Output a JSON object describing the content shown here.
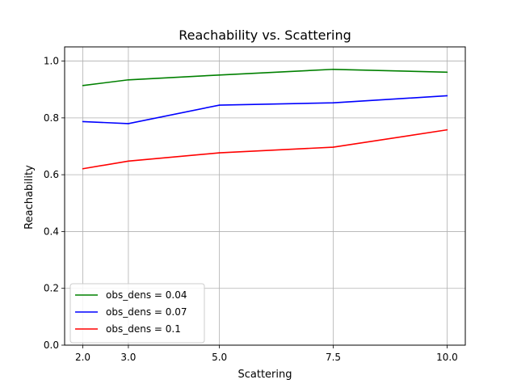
{
  "chart_data": {
    "type": "line",
    "title": "Reachability vs. Scattering",
    "xlabel": "Scattering",
    "ylabel": "Reachability",
    "x": [
      2.0,
      3.0,
      5.0,
      7.5,
      10.0
    ],
    "x_tick_labels": [
      "2.0",
      "3.0",
      "5.0",
      "7.5",
      "10.0"
    ],
    "y_ticks": [
      0.0,
      0.2,
      0.4,
      0.6,
      0.8,
      1.0
    ],
    "y_tick_labels": [
      "0.0",
      "0.2",
      "0.4",
      "0.6",
      "0.8",
      "1.0"
    ],
    "xlim": [
      1.6,
      10.4
    ],
    "ylim": [
      0.0,
      1.05
    ],
    "grid": true,
    "legend_position": "lower-left",
    "series": [
      {
        "name": "obs_dens = 0.04",
        "color": "#008000",
        "values": [
          0.914,
          0.934,
          0.951,
          0.971,
          0.961
        ]
      },
      {
        "name": "obs_dens = 0.07",
        "color": "#0000ff",
        "values": [
          0.787,
          0.78,
          0.845,
          0.853,
          0.878
        ]
      },
      {
        "name": "obs_dens = 0.1",
        "color": "#ff0000",
        "values": [
          0.621,
          0.648,
          0.677,
          0.697,
          0.758
        ]
      }
    ]
  }
}
